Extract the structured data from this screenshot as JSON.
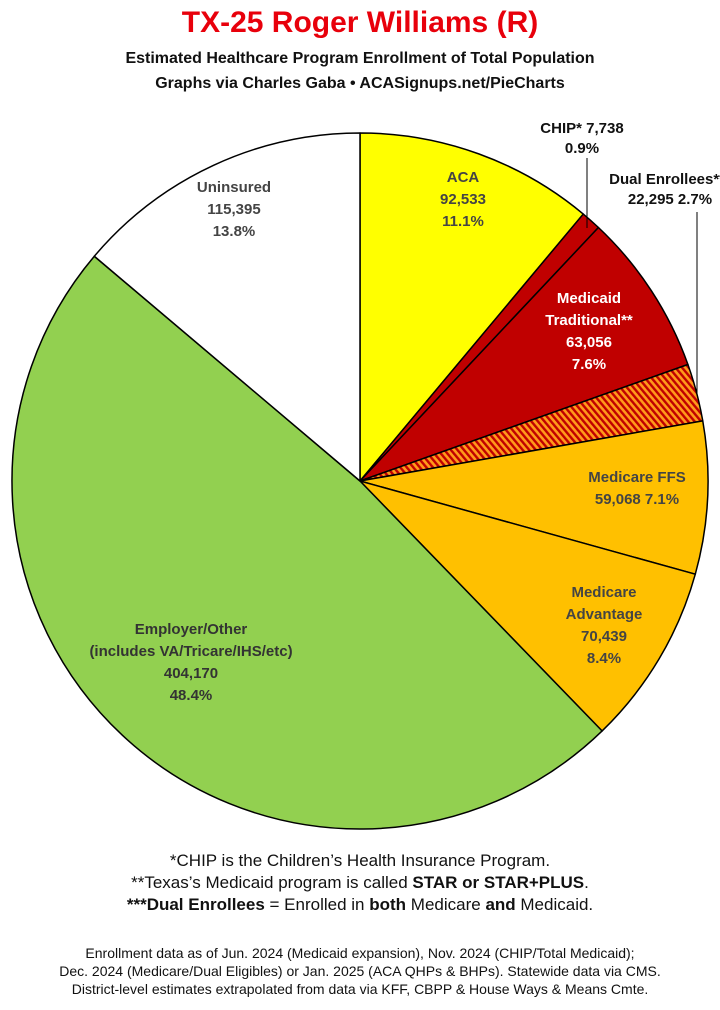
{
  "header": {
    "title": "TX-25 Roger Williams (R)",
    "subtitle1": "Estimated Healthcare Program Enrollment of Total Population",
    "subtitle2": "Graphs via Charles Gaba  •  ACASignups.net/PieCharts"
  },
  "chart_data": {
    "type": "pie",
    "start_angle_deg": 0,
    "direction": "clockwise",
    "slices": [
      {
        "key": "aca",
        "lines": [
          "ACA",
          "92,533",
          "11.1%"
        ],
        "value": 92533,
        "percent": 11.1,
        "color": "#ffff00",
        "text_color": "#444444"
      },
      {
        "key": "chip",
        "lines": [
          "CHIP* 7,738",
          "0.9%"
        ],
        "value": 7738,
        "percent": 0.9,
        "color": "#c00000",
        "text_color": "#111111"
      },
      {
        "key": "medicaid-traditional",
        "lines": [
          "Medicaid",
          "Traditional**",
          "63,056",
          "7.6%"
        ],
        "value": 63056,
        "percent": 7.6,
        "color": "#c00000",
        "text_color": "#ffffff"
      },
      {
        "key": "dual-enrollees",
        "lines": [
          "Dual Enrollees***",
          "22,295 2.7%"
        ],
        "value": 22295,
        "percent": 2.7,
        "color": "#c00000",
        "pattern": "hatch",
        "text_color": "#111111"
      },
      {
        "key": "medicare-ffs",
        "lines": [
          "Medicare FFS",
          "59,068 7.1%"
        ],
        "value": 59068,
        "percent": 7.1,
        "color": "#ffc000",
        "text_color": "#444444"
      },
      {
        "key": "medicare-advantage",
        "lines": [
          "Medicare",
          "Advantage",
          "70,439",
          "8.4%"
        ],
        "value": 70439,
        "percent": 8.4,
        "color": "#ffc000",
        "text_color": "#444444"
      },
      {
        "key": "employer-other",
        "lines": [
          "Employer/Other",
          "(includes VA/Tricare/IHS/etc)",
          "404,170",
          "48.4%"
        ],
        "value": 404170,
        "percent": 48.4,
        "color": "#92d050",
        "text_color": "#333333"
      },
      {
        "key": "uninsured",
        "lines": [
          "Uninsured",
          "115,395",
          "13.8%"
        ],
        "value": 115395,
        "percent": 13.8,
        "color": "#ffffff",
        "text_color": "#444444"
      }
    ]
  },
  "footnotes": {
    "chip_note": "*CHIP is the Children’s Health Insurance Program.",
    "medicaid_pre": "**Texas’s Medicaid program is called ",
    "medicaid_bold": "STAR or STAR+PLUS",
    "medicaid_post": ".",
    "dual_bold": "***Dual Enrollees",
    "dual_mid1": " = Enrolled in ",
    "dual_both": "both",
    "dual_mid2": " Medicare ",
    "dual_and": "and",
    "dual_post": " Medicaid.",
    "source1": "Enrollment data as of Jun. 2024 (Medicaid expansion), Nov. 2024 (CHIP/Total Medicaid);",
    "source2": "Dec. 2024 (Medicare/Dual Eligibles) or Jan. 2025 (ACA QHPs & BHPs). Statewide data via CMS.",
    "source3": "District-level estimates extrapolated from data via KFF, CBPP & House Ways & Means Cmte."
  }
}
